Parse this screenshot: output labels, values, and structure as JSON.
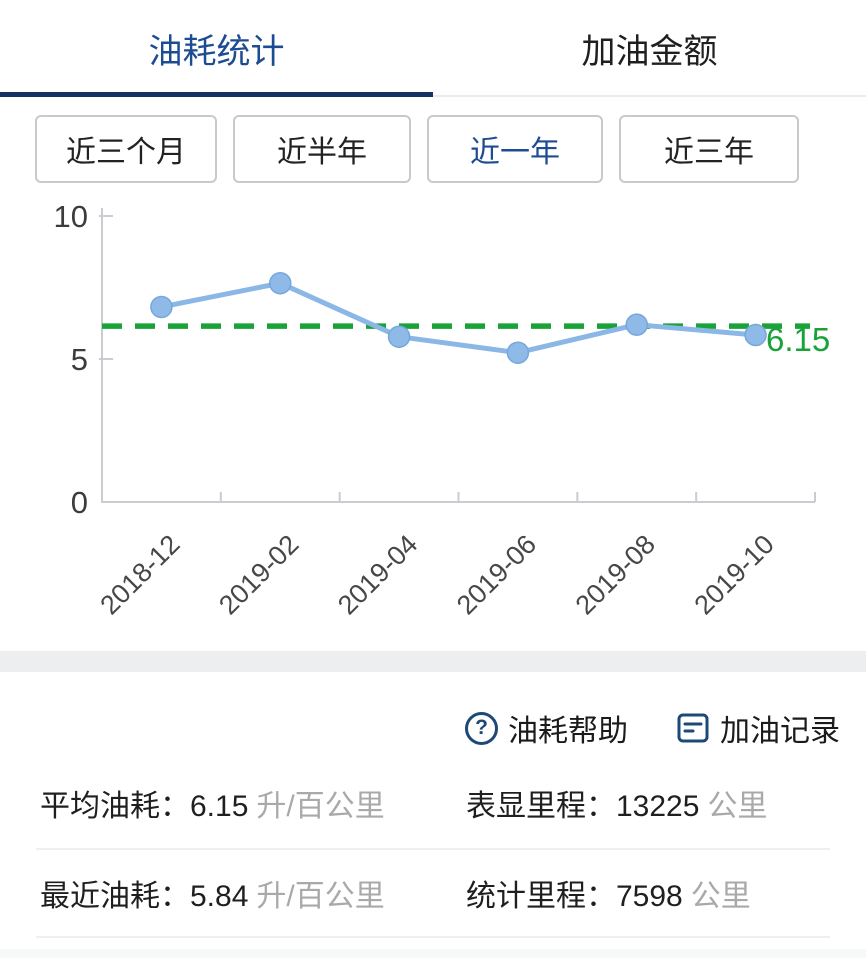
{
  "tabs": [
    {
      "label": "油耗统计",
      "active": true
    },
    {
      "label": "加油金额",
      "active": false
    }
  ],
  "range_buttons": [
    {
      "label": "近三个月",
      "selected": false
    },
    {
      "label": "近半年",
      "selected": false
    },
    {
      "label": "近一年",
      "selected": true
    },
    {
      "label": "近三年",
      "selected": false
    }
  ],
  "chart_data": {
    "type": "line",
    "title": "",
    "xlabel": "",
    "ylabel": "",
    "x": [
      "2018-12",
      "2019-02",
      "2019-04",
      "2019-06",
      "2019-08",
      "2019-10"
    ],
    "values": [
      6.82,
      7.65,
      5.78,
      5.22,
      6.2,
      5.84
    ],
    "ylim": [
      0,
      10
    ],
    "yticks": [
      0,
      5,
      10
    ],
    "grid": false,
    "legend": "none",
    "average_line": {
      "value": 6.15,
      "label": "6.15",
      "color": "#18a238",
      "style": "dashed"
    },
    "line_color": "#8ab7e6",
    "point_color": "#8fbae8",
    "point_edge_color": "#74a7db",
    "axis_color": "#c9cdd1"
  },
  "links": {
    "help": {
      "icon": "question-circle-icon",
      "icon_glyph": "?",
      "label": "油耗帮助"
    },
    "records": {
      "icon": "document-icon",
      "label": "加油记录"
    }
  },
  "stats": {
    "rows": [
      {
        "cells": [
          {
            "label": "平均油耗：",
            "value": "6.15",
            "unit": "升/百公里"
          },
          {
            "label": "表显里程：",
            "value": "13225",
            "unit": "公里"
          }
        ]
      },
      {
        "cells": [
          {
            "label": "最近油耗：",
            "value": "5.84",
            "unit": "升/百公里"
          },
          {
            "label": "统计里程：",
            "value": "7598",
            "unit": "公里"
          }
        ]
      }
    ]
  },
  "colors": {
    "accent_blue": "#1d4c92",
    "underline_navy": "#16335f",
    "icon_navy": "#1d4977",
    "green": "#18a238",
    "unit_gray": "#a9a9a9"
  }
}
